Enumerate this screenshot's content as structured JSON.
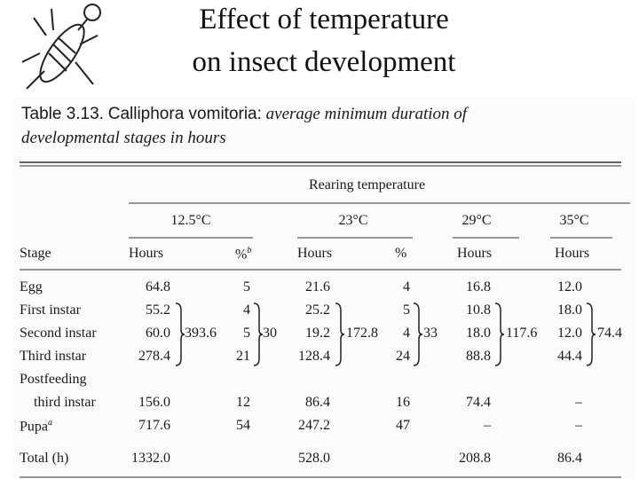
{
  "slide": {
    "title_lines": [
      "Effect of temperature",
      "on insect development"
    ]
  },
  "table": {
    "caption": {
      "label": "Table 3.13.",
      "species": "Calliphora vomitoria:",
      "description_lines": [
        "average minimum duration of",
        "developmental stages in hours"
      ]
    },
    "spanner": "Rearing temperature",
    "temperatures": [
      "12.5°C",
      "23°C",
      "29°C",
      "35°C"
    ],
    "headers": [
      "Stage",
      "Hours",
      "%",
      "Hours",
      "%",
      "Hours",
      "Hours"
    ],
    "header_footnote": "b",
    "rows": [
      {
        "stage": [
          "Egg"
        ],
        "cells": [
          "64.8",
          "5",
          "21.6",
          "4",
          "16.8",
          "12.0"
        ]
      },
      {
        "stage": [
          "First instar"
        ],
        "cells": [
          "55.2",
          "4",
          "25.2",
          "5",
          "10.8",
          "18.0"
        ]
      },
      {
        "stage": [
          "Second instar"
        ],
        "cells": [
          "60.0",
          "5",
          "19.2",
          "4",
          "18.0",
          "12.0"
        ]
      },
      {
        "stage": [
          "Third instar"
        ],
        "cells": [
          "278.4",
          "21",
          "128.4",
          "24",
          "88.8",
          "44.4"
        ]
      },
      {
        "stage": [
          "Postfeeding",
          "third instar"
        ],
        "cells": [
          "156.0",
          "12",
          "86.4",
          "16",
          "74.4",
          "–"
        ]
      },
      {
        "stage": [
          "Pupa"
        ],
        "stage_footnote": "a",
        "cells": [
          "717.6",
          "54",
          "247.2",
          "47",
          "–",
          "–"
        ]
      },
      {
        "stage": [
          "Total (h)"
        ],
        "cells": [
          "1332.0",
          null,
          "528.0",
          null,
          "208.8",
          "86.4"
        ]
      }
    ],
    "brace_totals": [
      "393.6",
      "30",
      "172.8",
      "33",
      "117.6",
      "74.4"
    ]
  }
}
